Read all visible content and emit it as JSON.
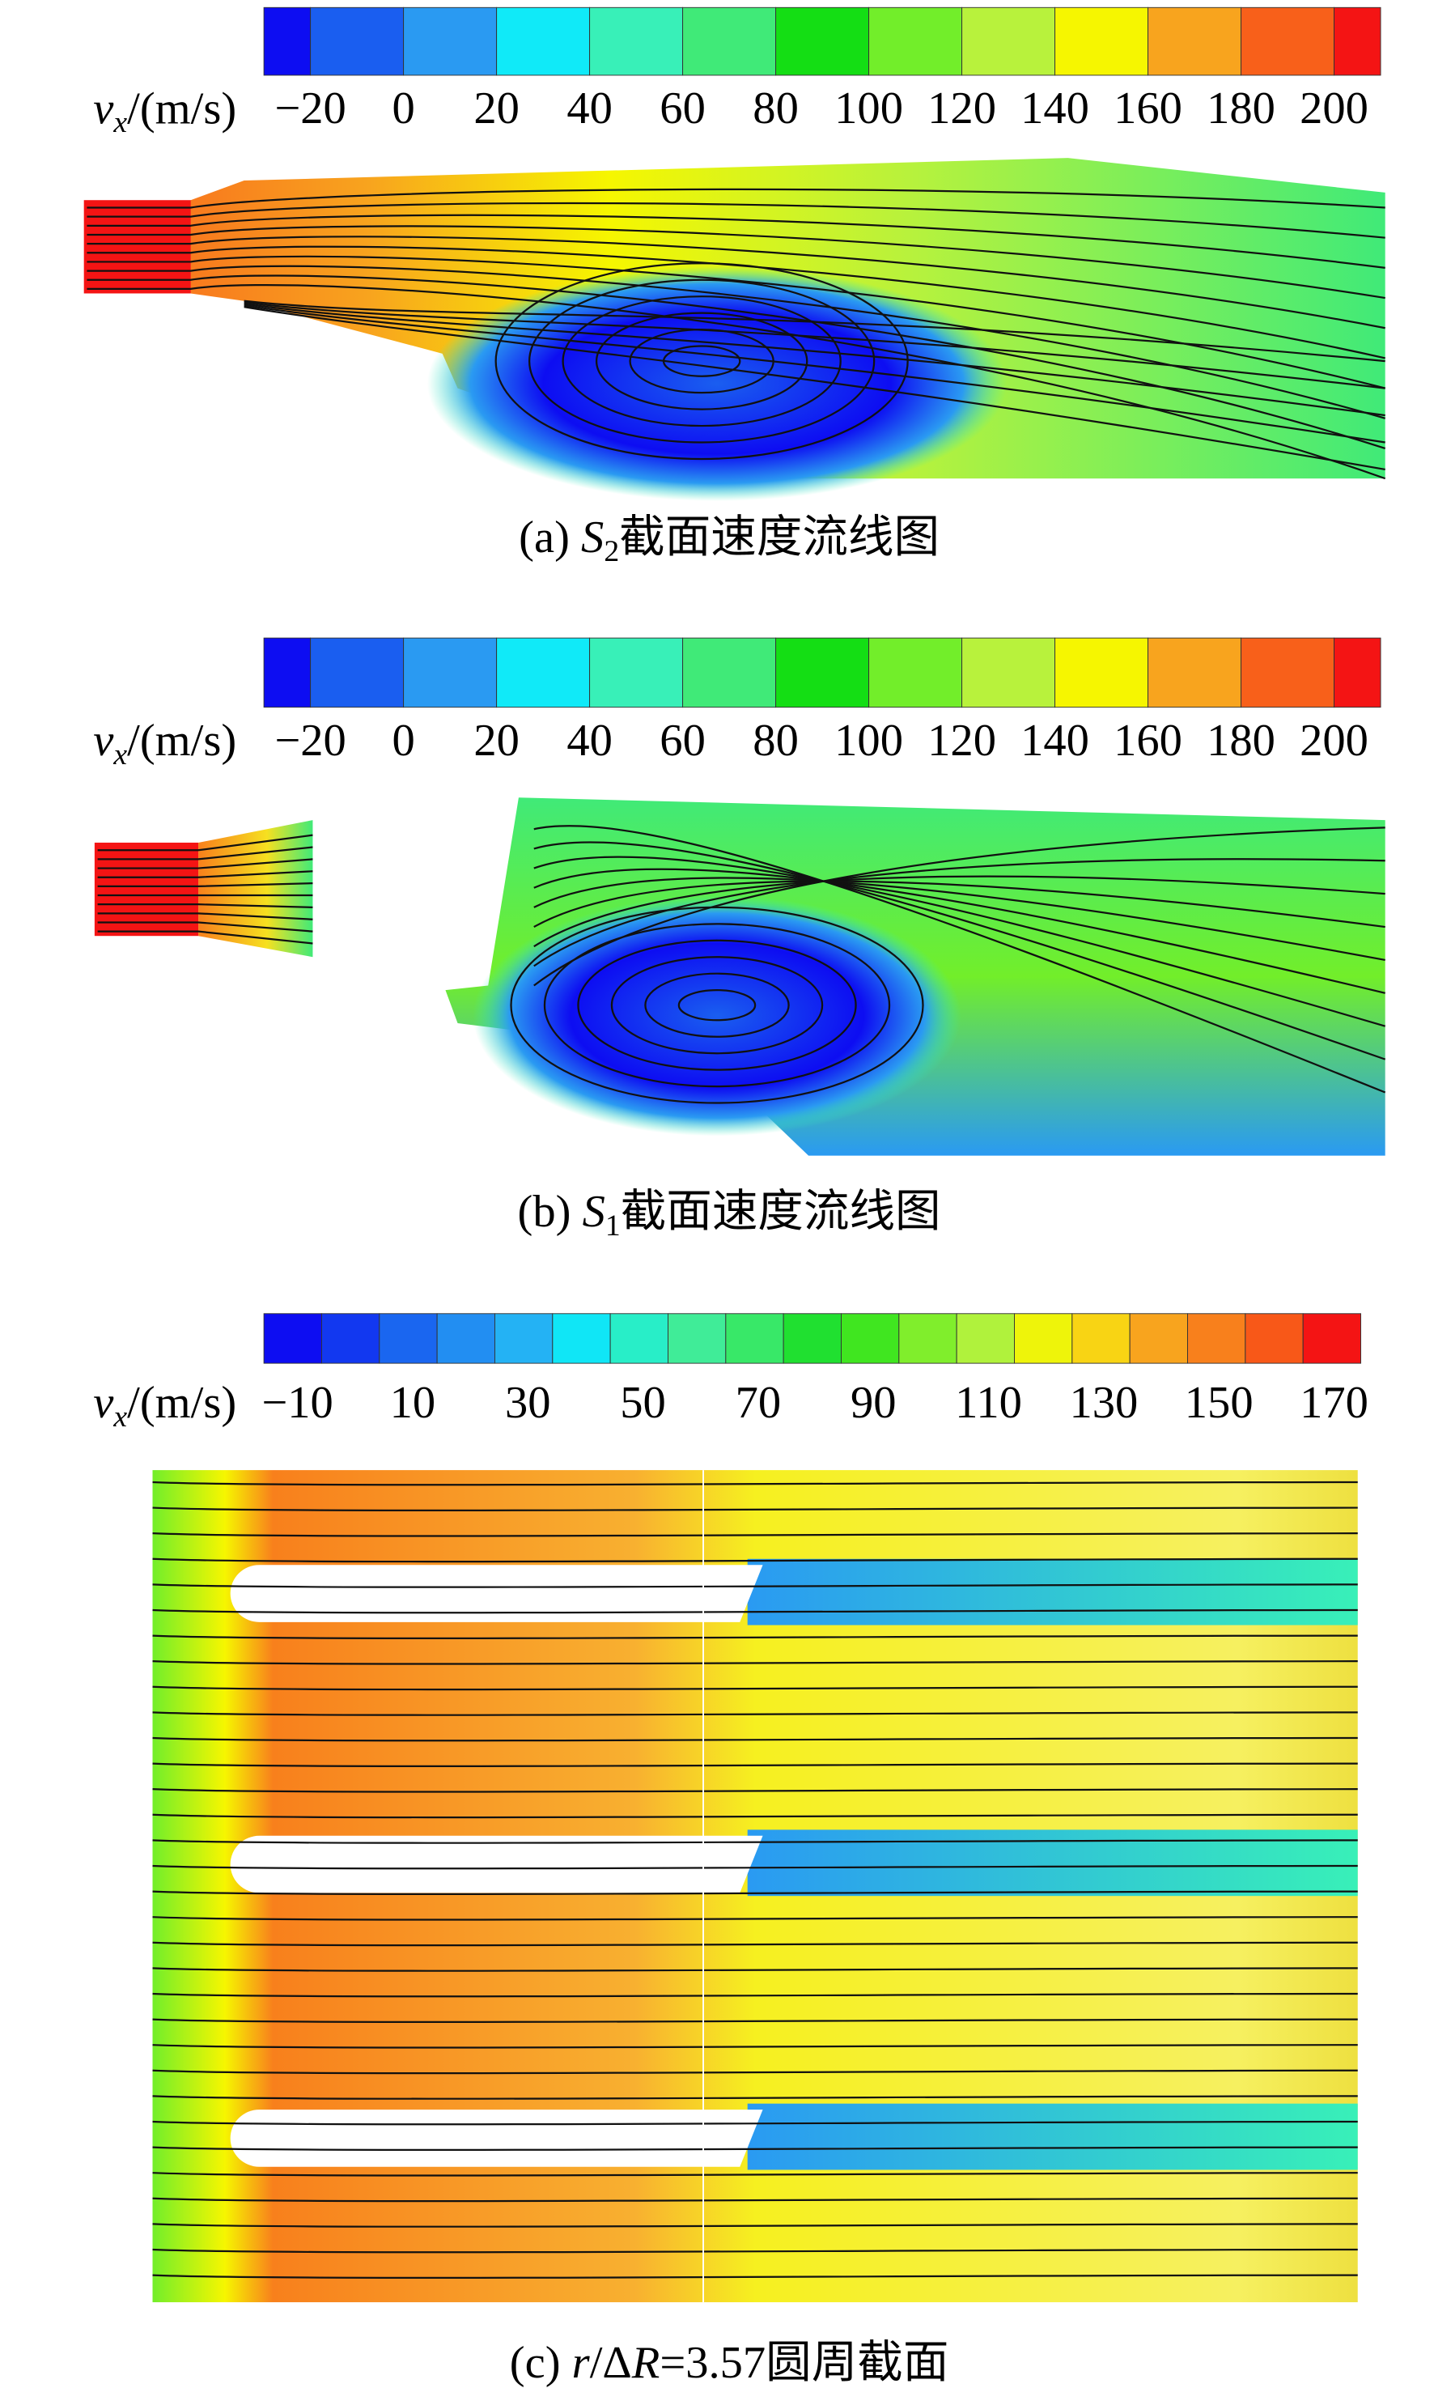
{
  "panels": [
    {
      "colorbar": {
        "variable": "v",
        "subscript": "x",
        "unit": "/(m/s)",
        "ticks": [
          "−20",
          "0",
          "20",
          "40",
          "60",
          "80",
          "100",
          "120",
          "140",
          "160",
          "180",
          "200"
        ],
        "colors": [
          "#0d0df2",
          "#1a5ef0",
          "#2a9af2",
          "#10eaf8",
          "#38f0b8",
          "#40ea78",
          "#14de14",
          "#72ee2a",
          "#b8f23c",
          "#f6f600",
          "#f8a41e",
          "#f8601a",
          "#f41414"
        ]
      },
      "caption": {
        "prefix": "(a) ",
        "symbol": "S",
        "subscript": "2",
        "text": "截面速度流线图"
      }
    },
    {
      "colorbar": {
        "variable": "v",
        "subscript": "x",
        "unit": "/(m/s)",
        "ticks": [
          "−20",
          "0",
          "20",
          "40",
          "60",
          "80",
          "100",
          "120",
          "140",
          "160",
          "180",
          "200"
        ],
        "colors": [
          "#0d0df2",
          "#1a5ef0",
          "#2a9af2",
          "#10eaf8",
          "#38f0b8",
          "#40ea78",
          "#14de14",
          "#72ee2a",
          "#b8f23c",
          "#f6f600",
          "#f8a41e",
          "#f8601a",
          "#f41414"
        ]
      },
      "caption": {
        "prefix": "(b) ",
        "symbol": "S",
        "subscript": "1",
        "text": "截面速度流线图"
      }
    },
    {
      "colorbar": {
        "variable": "v",
        "subscript": "x",
        "unit": "/(m/s)",
        "ticks": [
          "−10",
          "10",
          "30",
          "50",
          "70",
          "90",
          "110",
          "130",
          "150",
          "170"
        ],
        "colors": [
          "#0d0df2",
          "#1238f0",
          "#1a66f0",
          "#228ef2",
          "#24b2f4",
          "#10e6f6",
          "#28eec8",
          "#40ec98",
          "#38e868",
          "#20e030",
          "#40e620",
          "#80ee2c",
          "#b0f23c",
          "#eef40a",
          "#f8d414",
          "#f8a41e",
          "#f8801c",
          "#f85818",
          "#f41414"
        ]
      },
      "caption": {
        "prefix": "(c) ",
        "symbol": "r",
        "middle": "/Δ",
        "symbol2": "R",
        "text": "=3.57圆周截面"
      }
    }
  ]
}
